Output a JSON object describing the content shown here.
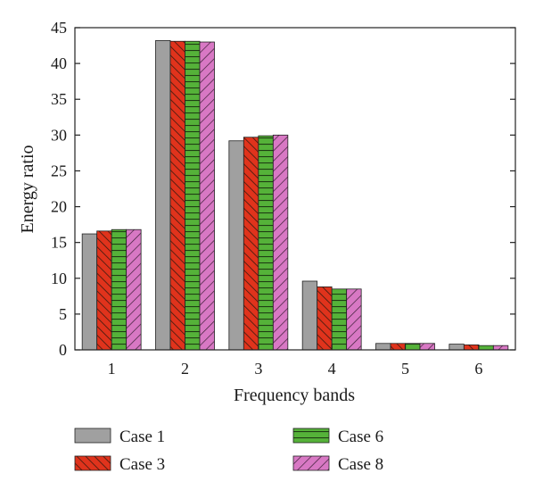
{
  "chart_data": {
    "type": "bar",
    "xlabel": "Frequency bands",
    "ylabel": "Energy ratio",
    "categories": [
      "1",
      "2",
      "3",
      "4",
      "5",
      "6"
    ],
    "ylim": [
      0,
      45
    ],
    "yticks": [
      0,
      5,
      10,
      15,
      20,
      25,
      30,
      35,
      40,
      45
    ],
    "grid": false,
    "legend_position": "bottom",
    "series": [
      {
        "name": "Case 1",
        "color": "#a0a0a0",
        "pattern": "solid",
        "values": [
          16.2,
          43.2,
          29.2,
          9.6,
          0.9,
          0.8
        ]
      },
      {
        "name": "Case 3",
        "color": "#e0331c",
        "pattern": "diagonal-dense",
        "values": [
          16.6,
          43.1,
          29.7,
          8.8,
          0.9,
          0.7
        ]
      },
      {
        "name": "Case 6",
        "color": "#55b239",
        "pattern": "horizontal",
        "values": [
          16.8,
          43.1,
          29.9,
          8.5,
          0.9,
          0.6
        ]
      },
      {
        "name": "Case 8",
        "color": "#d878c4",
        "pattern": "diagonal-back",
        "values": [
          16.8,
          43.0,
          30.0,
          8.5,
          0.9,
          0.6
        ]
      }
    ]
  }
}
